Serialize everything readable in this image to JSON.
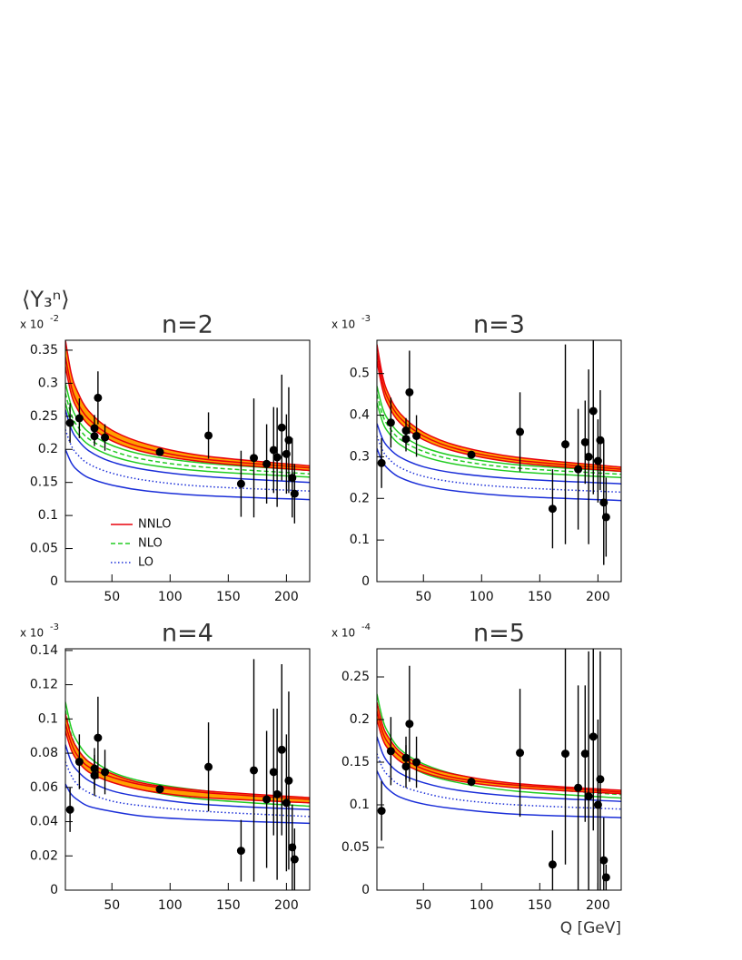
{
  "chart_data": [
    {
      "type": "scatter",
      "title": "n=2",
      "ylabel": "⟨Y₃ⁿ⟩",
      "y_multiplier": "x 10",
      "y_multiplier_exp": "-2",
      "legend": "lower left",
      "xlim": [
        10,
        220
      ],
      "xticks": [
        50,
        100,
        150,
        200
      ],
      "ylim": [
        0,
        0.365
      ],
      "yticks": [
        0,
        0.05,
        0.1,
        0.15,
        0.2,
        0.25,
        0.3,
        0.35
      ],
      "series": [
        {
          "kind": "points",
          "color": "#000000",
          "x": [
            14,
            22,
            35,
            35,
            38,
            44,
            91.2,
            133,
            161,
            172,
            183,
            189,
            192,
            196,
            200,
            202,
            205,
            207
          ],
          "values": [
            0.24,
            0.247,
            0.232,
            0.22,
            0.278,
            0.218,
            0.196,
            0.221,
            0.148,
            0.187,
            0.178,
            0.199,
            0.188,
            0.233,
            0.193,
            0.214,
            0.157,
            0.133
          ],
          "errors": [
            0.03,
            0.03,
            0.02,
            0.015,
            0.04,
            0.02,
            0.003,
            0.035,
            0.05,
            0.09,
            0.06,
            0.065,
            0.075,
            0.08,
            0.06,
            0.08,
            0.06,
            0.045
          ]
        },
        {
          "name": "NNLO",
          "kind": "band",
          "color": "#e8000b",
          "fill": "#ff9f00",
          "style": "solid",
          "x": [
            10,
            15,
            20,
            30,
            50,
            80,
            130,
            220
          ],
          "values": [
            0.34,
            0.296,
            0.272,
            0.246,
            0.22,
            0.201,
            0.185,
            0.172
          ],
          "lower": [
            0.325,
            0.284,
            0.262,
            0.237,
            0.213,
            0.195,
            0.181,
            0.168
          ],
          "upper": [
            0.365,
            0.315,
            0.289,
            0.258,
            0.229,
            0.208,
            0.19,
            0.175
          ]
        },
        {
          "name": "NLO",
          "kind": "band",
          "color": "#22cc22",
          "style": "dashed",
          "x": [
            10,
            15,
            20,
            30,
            50,
            80,
            130,
            220
          ],
          "values": [
            0.285,
            0.253,
            0.236,
            0.216,
            0.198,
            0.184,
            0.173,
            0.163
          ],
          "lower": [
            0.27,
            0.241,
            0.225,
            0.207,
            0.19,
            0.177,
            0.167,
            0.158
          ],
          "upper": [
            0.3,
            0.266,
            0.247,
            0.226,
            0.206,
            0.191,
            0.179,
            0.168
          ]
        },
        {
          "name": "LO",
          "kind": "band",
          "color": "#1a2ed8",
          "style": "dotted",
          "x": [
            10,
            15,
            20,
            30,
            50,
            80,
            130,
            220
          ],
          "values": [
            0.23,
            0.206,
            0.193,
            0.178,
            0.164,
            0.153,
            0.144,
            0.137
          ],
          "lower": [
            0.2,
            0.18,
            0.169,
            0.157,
            0.146,
            0.137,
            0.13,
            0.124
          ],
          "upper": [
            0.26,
            0.231,
            0.216,
            0.198,
            0.181,
            0.169,
            0.159,
            0.15
          ]
        }
      ]
    },
    {
      "type": "scatter",
      "title": "n=3",
      "y_multiplier": "x 10",
      "y_multiplier_exp": "-3",
      "xlim": [
        10,
        220
      ],
      "xticks": [
        50,
        100,
        150,
        200
      ],
      "ylim": [
        0,
        0.58
      ],
      "yticks": [
        0,
        0.1,
        0.2,
        0.3,
        0.4,
        0.5
      ],
      "series": [
        {
          "kind": "points",
          "color": "#000000",
          "x": [
            14,
            22,
            35,
            35,
            38,
            44,
            91.2,
            133,
            161,
            172,
            183,
            189,
            192,
            196,
            200,
            202,
            205,
            207
          ],
          "values": [
            0.285,
            0.382,
            0.343,
            0.363,
            0.455,
            0.35,
            0.305,
            0.36,
            0.175,
            0.33,
            0.27,
            0.335,
            0.3,
            0.41,
            0.29,
            0.34,
            0.19,
            0.155
          ],
          "errors": [
            0.06,
            0.06,
            0.03,
            0.03,
            0.1,
            0.05,
            0.005,
            0.095,
            0.095,
            0.24,
            0.145,
            0.1,
            0.21,
            0.2,
            0.1,
            0.12,
            0.15,
            0.095
          ]
        },
        {
          "kind": "band",
          "color": "#e8000b",
          "fill": "#ff9f00",
          "style": "solid",
          "x": [
            10,
            15,
            20,
            30,
            50,
            80,
            130,
            220
          ],
          "values": [
            0.55,
            0.477,
            0.437,
            0.393,
            0.35,
            0.318,
            0.292,
            0.27
          ],
          "lower": [
            0.53,
            0.461,
            0.423,
            0.381,
            0.341,
            0.311,
            0.286,
            0.265
          ],
          "upper": [
            0.57,
            0.493,
            0.451,
            0.404,
            0.359,
            0.326,
            0.299,
            0.275
          ]
        },
        {
          "kind": "band",
          "color": "#22cc22",
          "style": "dashed",
          "x": [
            10,
            15,
            20,
            30,
            50,
            80,
            130,
            220
          ],
          "values": [
            0.45,
            0.4,
            0.373,
            0.342,
            0.313,
            0.291,
            0.273,
            0.258
          ],
          "lower": [
            0.43,
            0.383,
            0.358,
            0.329,
            0.301,
            0.281,
            0.264,
            0.25
          ],
          "upper": [
            0.47,
            0.416,
            0.388,
            0.355,
            0.323,
            0.3,
            0.281,
            0.265
          ]
        },
        {
          "kind": "band",
          "color": "#1a2ed8",
          "style": "dotted",
          "x": [
            10,
            15,
            20,
            30,
            50,
            80,
            130,
            220
          ],
          "values": [
            0.35,
            0.315,
            0.296,
            0.274,
            0.253,
            0.238,
            0.226,
            0.215
          ],
          "lower": [
            0.32,
            0.287,
            0.27,
            0.25,
            0.231,
            0.217,
            0.205,
            0.195
          ],
          "upper": [
            0.38,
            0.342,
            0.322,
            0.299,
            0.276,
            0.26,
            0.247,
            0.235
          ]
        }
      ]
    },
    {
      "type": "scatter",
      "title": "n=4",
      "y_multiplier": "x 10",
      "y_multiplier_exp": "-3",
      "xlim": [
        10,
        220
      ],
      "xticks": [
        50,
        100,
        150,
        200
      ],
      "ylim": [
        0,
        0.141
      ],
      "yticks": [
        0,
        0.02,
        0.04,
        0.06,
        0.08,
        0.1,
        0.12,
        0.14
      ],
      "series": [
        {
          "kind": "points",
          "color": "#000000",
          "x": [
            14,
            22,
            35,
            35,
            38,
            44,
            91.2,
            133,
            161,
            172,
            183,
            189,
            192,
            196,
            200,
            202,
            205,
            207
          ],
          "values": [
            0.047,
            0.075,
            0.067,
            0.071,
            0.089,
            0.069,
            0.059,
            0.072,
            0.023,
            0.07,
            0.053,
            0.069,
            0.056,
            0.082,
            0.051,
            0.064,
            0.025,
            0.018
          ],
          "errors": [
            0.013,
            0.016,
            0.012,
            0.012,
            0.024,
            0.013,
            0.002,
            0.026,
            0.018,
            0.065,
            0.04,
            0.037,
            0.05,
            0.05,
            0.04,
            0.052,
            0.025,
            0.018
          ]
        },
        {
          "kind": "band",
          "color": "#e8000b",
          "fill": "#ff9f00",
          "style": "solid",
          "x": [
            10,
            15,
            20,
            30,
            50,
            80,
            130,
            220
          ],
          "values": [
            0.097,
            0.086,
            0.079,
            0.072,
            0.066,
            0.061,
            0.057,
            0.053
          ],
          "lower": [
            0.093,
            0.082,
            0.076,
            0.069,
            0.063,
            0.058,
            0.054,
            0.051
          ],
          "upper": [
            0.103,
            0.09,
            0.083,
            0.075,
            0.068,
            0.062,
            0.058,
            0.054
          ]
        },
        {
          "kind": "band",
          "color": "#22cc22",
          "style": "dashed",
          "x": [
            10,
            15,
            20,
            30,
            50,
            80,
            130,
            220
          ],
          "values": [
            0.105,
            0.091,
            0.083,
            0.075,
            0.066,
            0.06,
            0.055,
            0.051
          ],
          "lower": [
            0.1,
            0.087,
            0.079,
            0.071,
            0.064,
            0.058,
            0.053,
            0.049
          ],
          "upper": [
            0.11,
            0.095,
            0.087,
            0.078,
            0.069,
            0.063,
            0.058,
            0.053
          ]
        },
        {
          "kind": "band",
          "color": "#1a2ed8",
          "style": "dotted",
          "x": [
            10,
            15,
            20,
            30,
            50,
            80,
            130,
            220
          ],
          "values": [
            0.075,
            0.067,
            0.062,
            0.057,
            0.052,
            0.049,
            0.046,
            0.043
          ],
          "lower": [
            0.062,
            0.056,
            0.053,
            0.049,
            0.046,
            0.043,
            0.041,
            0.039
          ],
          "upper": [
            0.085,
            0.075,
            0.07,
            0.064,
            0.058,
            0.054,
            0.05,
            0.047
          ]
        }
      ]
    },
    {
      "type": "scatter",
      "title": "n=5",
      "xlabel": "Q [GeV]",
      "y_multiplier": "x 10",
      "y_multiplier_exp": "-4",
      "xlim": [
        10,
        220
      ],
      "xticks": [
        50,
        100,
        150,
        200
      ],
      "ylim": [
        0,
        0.283
      ],
      "yticks": [
        0,
        0.05,
        0.1,
        0.15,
        0.2,
        0.25
      ],
      "series": [
        {
          "kind": "points",
          "color": "#000000",
          "x": [
            14,
            22,
            35,
            35,
            38,
            44,
            91.2,
            133,
            161,
            172,
            183,
            189,
            192,
            196,
            200,
            202,
            205,
            207
          ],
          "values": [
            0.093,
            0.163,
            0.145,
            0.155,
            0.195,
            0.15,
            0.127,
            0.161,
            0.03,
            0.16,
            0.12,
            0.16,
            0.11,
            0.18,
            0.1,
            0.13,
            0.035,
            0.015
          ],
          "errors": [
            0.035,
            0.04,
            0.025,
            0.025,
            0.068,
            0.03,
            0.005,
            0.075,
            0.04,
            0.13,
            0.12,
            0.08,
            0.17,
            0.11,
            0.1,
            0.15,
            0.05,
            0.015
          ]
        },
        {
          "kind": "band",
          "color": "#e8000b",
          "fill": "#ff9f00",
          "style": "solid",
          "x": [
            10,
            15,
            20,
            30,
            50,
            80,
            130,
            220
          ],
          "values": [
            0.21,
            0.185,
            0.172,
            0.157,
            0.142,
            0.131,
            0.123,
            0.115
          ],
          "lower": [
            0.2,
            0.177,
            0.165,
            0.151,
            0.138,
            0.128,
            0.12,
            0.113
          ],
          "upper": [
            0.22,
            0.193,
            0.179,
            0.162,
            0.146,
            0.135,
            0.125,
            0.117
          ]
        },
        {
          "kind": "band",
          "color": "#22cc22",
          "style": "dashed",
          "x": [
            10,
            15,
            20,
            30,
            50,
            80,
            130,
            220
          ],
          "values": [
            0.22,
            0.192,
            0.177,
            0.159,
            0.143,
            0.131,
            0.121,
            0.112
          ],
          "lower": [
            0.21,
            0.183,
            0.169,
            0.153,
            0.137,
            0.126,
            0.116,
            0.108
          ],
          "upper": [
            0.23,
            0.2,
            0.184,
            0.165,
            0.148,
            0.135,
            0.124,
            0.115
          ]
        },
        {
          "kind": "band",
          "color": "#1a2ed8",
          "style": "dotted",
          "x": [
            10,
            15,
            20,
            30,
            50,
            80,
            130,
            220
          ],
          "values": [
            0.16,
            0.143,
            0.134,
            0.123,
            0.114,
            0.106,
            0.1,
            0.095
          ],
          "lower": [
            0.14,
            0.126,
            0.118,
            0.109,
            0.101,
            0.095,
            0.089,
            0.085
          ],
          "upper": [
            0.18,
            0.16,
            0.149,
            0.137,
            0.126,
            0.117,
            0.11,
            0.104
          ]
        }
      ]
    }
  ]
}
